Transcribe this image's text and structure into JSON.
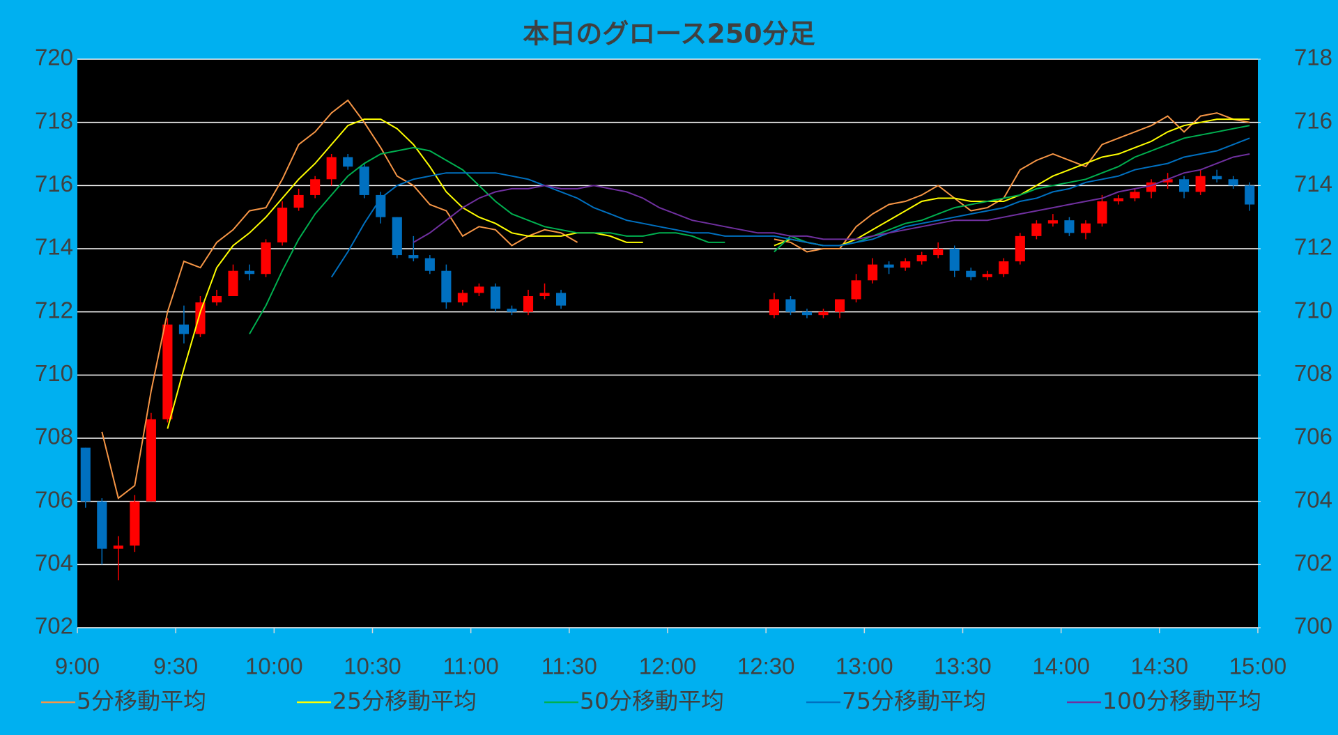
{
  "chart_data": {
    "type": "candlestick",
    "title": "本日のグロース250分足",
    "x": [
      "9:00",
      "9:05",
      "9:10",
      "9:15",
      "9:20",
      "9:25",
      "9:30",
      "9:35",
      "9:40",
      "9:45",
      "9:50",
      "9:55",
      "10:00",
      "10:05",
      "10:10",
      "10:15",
      "10:20",
      "10:25",
      "10:30",
      "10:35",
      "10:40",
      "10:45",
      "10:50",
      "10:55",
      "11:00",
      "11:05",
      "11:10",
      "11:15",
      "11:20",
      "11:25",
      "11:30",
      "11:35",
      "11:40",
      "11:45",
      "11:50",
      "11:55",
      "12:00",
      "12:05",
      "12:10",
      "12:15",
      "12:20",
      "12:25",
      "12:30",
      "12:35",
      "12:40",
      "12:45",
      "12:50",
      "12:55",
      "13:00",
      "13:05",
      "13:10",
      "13:15",
      "13:20",
      "13:25",
      "13:30",
      "13:35",
      "13:40",
      "13:45",
      "13:50",
      "13:55",
      "14:00",
      "14:05",
      "14:10",
      "14:15",
      "14:20",
      "14:25",
      "14:30",
      "14:35",
      "14:40",
      "14:45",
      "14:50",
      "14:55"
    ],
    "open": [
      707.7,
      706.0,
      704.5,
      704.6,
      706.0,
      708.6,
      711.6,
      711.3,
      712.3,
      712.5,
      713.3,
      713.2,
      714.2,
      715.3,
      715.7,
      716.2,
      716.9,
      716.6,
      715.7,
      715.0,
      713.8,
      713.7,
      713.3,
      712.3,
      712.6,
      712.8,
      712.1,
      712.0,
      712.5,
      712.6,
      null,
      null,
      null,
      null,
      null,
      null,
      null,
      null,
      null,
      null,
      null,
      null,
      711.9,
      712.4,
      712.0,
      711.9,
      712.0,
      712.4,
      713.0,
      713.5,
      713.4,
      713.6,
      713.8,
      714.0,
      713.3,
      713.1,
      713.2,
      713.6,
      714.4,
      714.8,
      714.9,
      714.5,
      714.8,
      715.5,
      715.6,
      715.8,
      716.1,
      716.2,
      715.8,
      716.3,
      716.2,
      716.0
    ],
    "high": [
      707.7,
      706.1,
      704.9,
      706.2,
      708.8,
      711.8,
      712.2,
      712.5,
      712.7,
      713.5,
      713.5,
      714.3,
      715.5,
      715.9,
      716.3,
      717.0,
      717.0,
      716.7,
      715.8,
      715.0,
      714.4,
      713.8,
      713.5,
      712.7,
      712.9,
      712.9,
      712.2,
      712.7,
      712.9,
      712.7,
      null,
      null,
      null,
      null,
      null,
      null,
      null,
      null,
      null,
      null,
      null,
      null,
      712.6,
      712.5,
      712.1,
      712.1,
      712.4,
      713.2,
      713.7,
      713.6,
      713.7,
      713.9,
      714.2,
      714.1,
      713.4,
      713.3,
      713.7,
      714.5,
      714.9,
      715.1,
      715.0,
      714.9,
      715.7,
      715.7,
      715.9,
      716.2,
      716.4,
      716.3,
      716.5,
      716.5,
      716.3,
      716.1
    ],
    "low": [
      705.8,
      704.0,
      703.5,
      704.4,
      706.0,
      708.5,
      711.0,
      711.2,
      712.2,
      712.5,
      713.0,
      713.1,
      714.1,
      715.2,
      715.6,
      716.0,
      716.5,
      715.6,
      714.8,
      713.7,
      713.6,
      713.2,
      712.1,
      712.2,
      712.5,
      712.0,
      711.9,
      711.9,
      712.4,
      712.1,
      null,
      null,
      null,
      null,
      null,
      null,
      null,
      null,
      null,
      null,
      null,
      null,
      711.8,
      711.9,
      711.8,
      711.8,
      711.8,
      712.3,
      712.9,
      713.2,
      713.3,
      713.5,
      713.7,
      713.1,
      713.0,
      713.0,
      713.1,
      713.5,
      714.3,
      714.7,
      714.4,
      714.3,
      714.7,
      715.4,
      715.5,
      715.6,
      715.9,
      715.6,
      715.7,
      716.1,
      715.9,
      715.2
    ],
    "close": [
      706.0,
      704.5,
      704.6,
      706.0,
      708.6,
      711.6,
      711.3,
      712.3,
      712.5,
      713.3,
      713.2,
      714.2,
      715.3,
      715.7,
      716.2,
      716.9,
      716.6,
      715.7,
      715.0,
      713.8,
      713.7,
      713.3,
      712.3,
      712.6,
      712.8,
      712.1,
      712.0,
      712.5,
      712.6,
      712.2,
      null,
      null,
      null,
      null,
      null,
      null,
      null,
      null,
      null,
      null,
      null,
      null,
      712.4,
      712.0,
      711.9,
      712.0,
      712.4,
      713.0,
      713.5,
      713.4,
      713.6,
      713.8,
      714.0,
      713.3,
      713.1,
      713.2,
      713.6,
      714.4,
      714.8,
      714.9,
      714.5,
      714.8,
      715.5,
      715.6,
      715.8,
      716.1,
      716.2,
      715.8,
      716.3,
      716.2,
      716.0,
      715.4
    ],
    "up_color": "#ff0000",
    "down_color": "#0070c0",
    "series": [
      {
        "name": "5分移動平均",
        "color": "#f79646",
        "values": [
          null,
          708.2,
          706.1,
          706.5,
          709.5,
          712,
          713.6,
          713.4,
          714.2,
          714.6,
          715.2,
          715.3,
          716.2,
          717.3,
          717.7,
          718.3,
          718.7,
          718.0,
          717.2,
          716.3,
          716.0,
          715.4,
          715.2,
          714.4,
          714.7,
          714.6,
          714.1,
          714.4,
          714.6,
          714.5,
          714.2,
          null,
          null,
          null,
          null,
          null,
          null,
          null,
          null,
          null,
          null,
          null,
          714.3,
          714.2,
          713.9,
          714.0,
          714.0,
          714.7,
          715.1,
          715.4,
          715.5,
          715.7,
          716.0,
          715.6,
          715.2,
          715.3,
          715.6,
          716.5,
          716.8,
          717.0,
          716.8,
          716.6,
          717.3,
          717.5,
          717.7,
          717.9,
          718.2,
          717.7,
          718.2,
          718.3,
          718.1,
          718.0
        ]
      },
      {
        "name": "25分移動平均",
        "color": "#ffff00",
        "values": [
          null,
          null,
          null,
          null,
          null,
          708.3,
          710.2,
          712.0,
          713.4,
          714.1,
          714.5,
          715.0,
          715.6,
          716.2,
          716.7,
          717.3,
          717.9,
          718.1,
          718.1,
          717.8,
          717.3,
          716.6,
          715.8,
          715.3,
          715.0,
          714.8,
          714.5,
          714.4,
          714.4,
          714.4,
          714.5,
          714.5,
          714.4,
          714.2,
          714.2,
          null,
          null,
          null,
          null,
          null,
          null,
          null,
          714.1,
          714.3,
          714.2,
          714.1,
          714.1,
          714.3,
          714.6,
          714.9,
          715.2,
          715.5,
          715.6,
          715.6,
          715.5,
          715.5,
          715.5,
          715.7,
          716.0,
          716.3,
          716.5,
          716.7,
          716.9,
          717.0,
          717.2,
          717.4,
          717.7,
          717.9,
          718.0,
          718.1,
          718.1,
          718.1
        ]
      },
      {
        "name": "50分移動平均",
        "color": "#00b050",
        "values": [
          null,
          null,
          null,
          null,
          null,
          null,
          null,
          null,
          null,
          null,
          711.3,
          712.2,
          713.3,
          714.3,
          715.1,
          715.7,
          716.3,
          716.7,
          717.0,
          717.1,
          717.2,
          717.1,
          716.8,
          716.5,
          716.0,
          715.5,
          715.1,
          714.9,
          714.7,
          714.6,
          714.5,
          714.5,
          714.5,
          714.4,
          714.4,
          714.5,
          714.5,
          714.4,
          714.2,
          714.2,
          null,
          null,
          713.9,
          714.4,
          714.2,
          714.1,
          714.1,
          714.2,
          714.4,
          714.6,
          714.8,
          714.9,
          715.1,
          715.3,
          715.4,
          715.5,
          715.6,
          715.7,
          715.9,
          716.0,
          716.1,
          716.2,
          716.4,
          716.6,
          716.9,
          717.1,
          717.3,
          717.5,
          717.6,
          717.7,
          717.8,
          717.9
        ]
      },
      {
        "name": "75分移動平均",
        "color": "#0070c0",
        "values": [
          null,
          null,
          null,
          null,
          null,
          null,
          null,
          null,
          null,
          null,
          null,
          null,
          null,
          null,
          null,
          713.1,
          713.9,
          714.8,
          715.6,
          716.0,
          716.2,
          716.3,
          716.4,
          716.4,
          716.4,
          716.4,
          716.3,
          716.2,
          716.0,
          715.8,
          715.6,
          715.3,
          715.1,
          714.9,
          714.8,
          714.7,
          714.6,
          714.5,
          714.5,
          714.4,
          714.4,
          714.4,
          714.4,
          714.3,
          714.2,
          714.1,
          714.1,
          714.2,
          714.3,
          714.5,
          714.7,
          714.8,
          714.9,
          715.0,
          715.1,
          715.2,
          715.3,
          715.5,
          715.6,
          715.8,
          715.9,
          716.1,
          716.2,
          716.3,
          716.5,
          716.6,
          716.7,
          716.9,
          717.0,
          717.1,
          717.3,
          717.5
        ]
      },
      {
        "name": "100分移動平均",
        "color": "#7030a0",
        "values": [
          null,
          null,
          null,
          null,
          null,
          null,
          null,
          null,
          null,
          null,
          null,
          null,
          null,
          null,
          null,
          null,
          null,
          null,
          null,
          null,
          714.2,
          714.5,
          714.9,
          715.3,
          715.6,
          715.8,
          715.9,
          715.9,
          716.0,
          715.9,
          715.9,
          716.0,
          715.9,
          715.8,
          715.6,
          715.3,
          715.1,
          714.9,
          714.8,
          714.7,
          714.6,
          714.5,
          714.5,
          714.4,
          714.4,
          714.3,
          714.3,
          714.3,
          714.4,
          714.5,
          714.6,
          714.7,
          714.8,
          714.9,
          714.9,
          714.9,
          715.0,
          715.1,
          715.2,
          715.3,
          715.4,
          715.5,
          715.6,
          715.8,
          715.9,
          716.0,
          716.2,
          716.4,
          716.5,
          716.7,
          716.9,
          717.0
        ]
      }
    ],
    "xlim": [
      "9:00",
      "15:00"
    ],
    "xticks": [
      "9:00",
      "9:30",
      "10:00",
      "10:30",
      "11:00",
      "11:30",
      "12:00",
      "12:30",
      "13:00",
      "13:30",
      "14:00",
      "14:30",
      "15:00"
    ],
    "ylim": [
      702,
      720
    ],
    "yticks": [
      702,
      704,
      706,
      708,
      710,
      712,
      714,
      716,
      718,
      720
    ],
    "y2lim": [
      700,
      718
    ],
    "y2ticks": [
      700,
      702,
      704,
      706,
      708,
      710,
      712,
      714,
      716,
      718
    ],
    "grid": true,
    "legend": "bottom"
  }
}
